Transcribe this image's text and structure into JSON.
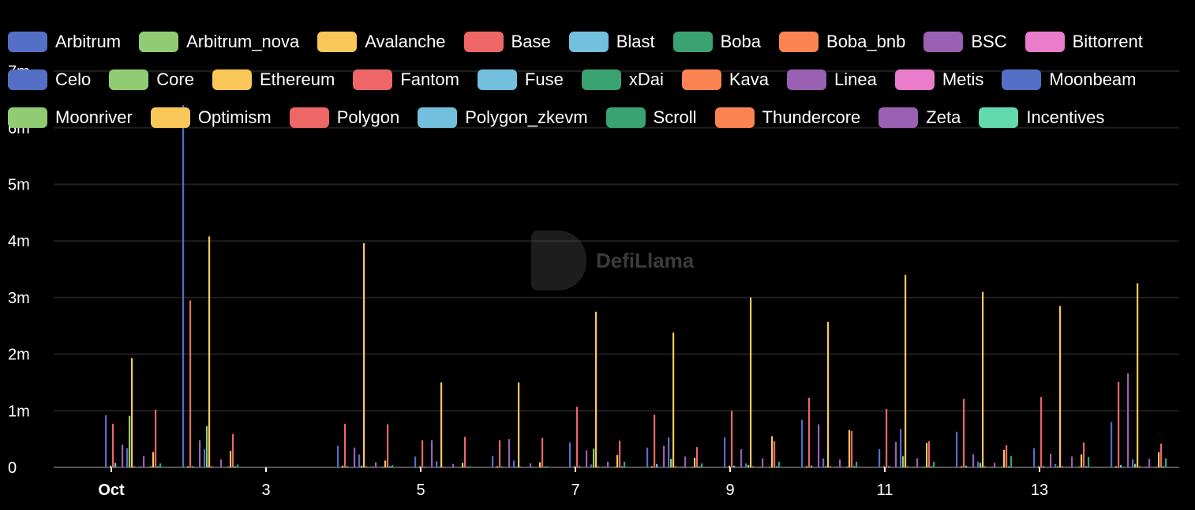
{
  "chart_data": {
    "type": "bar",
    "title": "",
    "xlabel": "",
    "ylabel": "",
    "ylim": [
      0,
      7000000
    ],
    "yticks": [
      "0",
      "1m",
      "2m",
      "3m",
      "4m",
      "5m",
      "6m",
      "7m"
    ],
    "xticks": [
      {
        "day": 1,
        "label": "Oct"
      },
      {
        "day": 3,
        "label": "3"
      },
      {
        "day": 5,
        "label": "5"
      },
      {
        "day": 7,
        "label": "7"
      },
      {
        "day": 9,
        "label": "9"
      },
      {
        "day": 11,
        "label": "11"
      },
      {
        "day": 13,
        "label": "13"
      }
    ],
    "days": [
      1,
      2,
      3,
      4,
      5,
      6,
      7,
      8,
      9,
      10,
      11,
      12,
      13,
      14
    ],
    "legend_position": "top",
    "grid": true,
    "series": [
      {
        "name": "Arbitrum",
        "color": "#5470c6",
        "values": [
          920000,
          6400000,
          0,
          380000,
          190000,
          200000,
          440000,
          350000,
          530000,
          840000,
          320000,
          630000,
          340000,
          800000
        ]
      },
      {
        "name": "Arbitrum_nova",
        "color": "#91cc75",
        "values": [
          0,
          0,
          0,
          0,
          0,
          0,
          0,
          0,
          0,
          0,
          0,
          0,
          0,
          0
        ]
      },
      {
        "name": "Avalanche",
        "color": "#fac858",
        "values": [
          30000,
          20000,
          0,
          30000,
          20000,
          20000,
          20000,
          20000,
          30000,
          20000,
          20000,
          20000,
          20000,
          20000
        ]
      },
      {
        "name": "Base",
        "color": "#ee6666",
        "values": [
          770000,
          2950000,
          0,
          770000,
          480000,
          480000,
          1070000,
          930000,
          1000000,
          1230000,
          1030000,
          1210000,
          1240000,
          1510000
        ]
      },
      {
        "name": "Blast",
        "color": "#73c0de",
        "values": [
          80000,
          20000,
          0,
          20000,
          10000,
          10000,
          20000,
          60000,
          30000,
          30000,
          20000,
          30000,
          20000,
          40000
        ]
      },
      {
        "name": "Boba",
        "color": "#3ba272",
        "values": [
          0,
          0,
          0,
          0,
          0,
          0,
          0,
          0,
          0,
          0,
          0,
          0,
          0,
          0
        ]
      },
      {
        "name": "Boba_bnb",
        "color": "#fc8452",
        "values": [
          0,
          0,
          0,
          0,
          0,
          0,
          0,
          0,
          0,
          0,
          0,
          0,
          0,
          0
        ]
      },
      {
        "name": "BSC",
        "color": "#9a60b4",
        "values": [
          400000,
          480000,
          0,
          350000,
          480000,
          500000,
          300000,
          380000,
          320000,
          760000,
          450000,
          230000,
          240000,
          1660000
        ]
      },
      {
        "name": "Bittorrent",
        "color": "#ea7ccc",
        "values": [
          0,
          0,
          0,
          0,
          0,
          0,
          0,
          0,
          0,
          0,
          0,
          0,
          0,
          0
        ]
      },
      {
        "name": "Celo",
        "color": "#5470c6",
        "values": [
          340000,
          320000,
          0,
          230000,
          110000,
          120000,
          50000,
          530000,
          70000,
          160000,
          680000,
          100000,
          60000,
          140000
        ]
      },
      {
        "name": "Core",
        "color": "#91cc75",
        "values": [
          910000,
          730000,
          0,
          30000,
          10000,
          10000,
          330000,
          150000,
          40000,
          20000,
          200000,
          80000,
          20000,
          60000
        ]
      },
      {
        "name": "Ethereum",
        "color": "#fac858",
        "values": [
          1930000,
          4080000,
          0,
          3960000,
          1500000,
          1500000,
          2750000,
          2380000,
          3000000,
          2570000,
          3400000,
          3100000,
          2850000,
          3250000
        ]
      },
      {
        "name": "Fantom",
        "color": "#ee6666",
        "values": [
          20000,
          20000,
          0,
          20000,
          10000,
          10000,
          20000,
          20000,
          20000,
          20000,
          20000,
          20000,
          20000,
          20000
        ]
      },
      {
        "name": "Fuse",
        "color": "#73c0de",
        "values": [
          0,
          0,
          0,
          0,
          0,
          0,
          0,
          0,
          0,
          0,
          0,
          0,
          0,
          0
        ]
      },
      {
        "name": "xDai",
        "color": "#3ba272",
        "values": [
          10000,
          0,
          0,
          10000,
          0,
          0,
          10000,
          10000,
          10000,
          10000,
          10000,
          10000,
          10000,
          10000
        ]
      },
      {
        "name": "Kava",
        "color": "#fc8452",
        "values": [
          10000,
          0,
          0,
          10000,
          0,
          0,
          10000,
          10000,
          10000,
          10000,
          10000,
          10000,
          10000,
          10000
        ]
      },
      {
        "name": "Linea",
        "color": "#9a60b4",
        "values": [
          200000,
          140000,
          0,
          90000,
          60000,
          70000,
          100000,
          190000,
          160000,
          140000,
          160000,
          80000,
          190000,
          150000
        ]
      },
      {
        "name": "Metis",
        "color": "#ea7ccc",
        "values": [
          0,
          0,
          0,
          0,
          0,
          0,
          0,
          0,
          0,
          0,
          0,
          0,
          0,
          0
        ]
      },
      {
        "name": "Moonbeam",
        "color": "#5470c6",
        "values": [
          0,
          0,
          0,
          0,
          0,
          0,
          0,
          0,
          0,
          0,
          0,
          0,
          0,
          0
        ]
      },
      {
        "name": "Moonriver",
        "color": "#91cc75",
        "values": [
          20000,
          10000,
          0,
          10000,
          0,
          0,
          10000,
          10000,
          10000,
          10000,
          10000,
          10000,
          10000,
          10000
        ]
      },
      {
        "name": "Optimism",
        "color": "#fac858",
        "values": [
          270000,
          290000,
          0,
          120000,
          80000,
          90000,
          220000,
          170000,
          550000,
          660000,
          430000,
          310000,
          230000,
          270000
        ]
      },
      {
        "name": "Polygon",
        "color": "#ee6666",
        "values": [
          1020000,
          590000,
          0,
          760000,
          540000,
          520000,
          470000,
          360000,
          460000,
          640000,
          460000,
          390000,
          440000,
          420000
        ]
      },
      {
        "name": "Polygon_zkevm",
        "color": "#73c0de",
        "values": [
          20000,
          20000,
          0,
          20000,
          10000,
          10000,
          20000,
          20000,
          20000,
          20000,
          20000,
          20000,
          20000,
          20000
        ]
      },
      {
        "name": "Scroll",
        "color": "#3ba272",
        "values": [
          70000,
          50000,
          0,
          40000,
          20000,
          20000,
          100000,
          70000,
          100000,
          100000,
          100000,
          200000,
          180000,
          160000
        ]
      },
      {
        "name": "Thundercore",
        "color": "#fc8452",
        "values": [
          0,
          0,
          0,
          0,
          0,
          0,
          0,
          0,
          0,
          0,
          0,
          0,
          0,
          0
        ]
      },
      {
        "name": "Zeta",
        "color": "#9a60b4",
        "values": [
          0,
          0,
          0,
          0,
          0,
          0,
          0,
          0,
          0,
          0,
          0,
          0,
          0,
          0
        ]
      },
      {
        "name": "Incentives",
        "color": "#63d9b0",
        "values": [
          0,
          0,
          0,
          0,
          0,
          0,
          0,
          0,
          0,
          0,
          0,
          0,
          0,
          0
        ]
      }
    ]
  },
  "watermark": "DefiLlama"
}
